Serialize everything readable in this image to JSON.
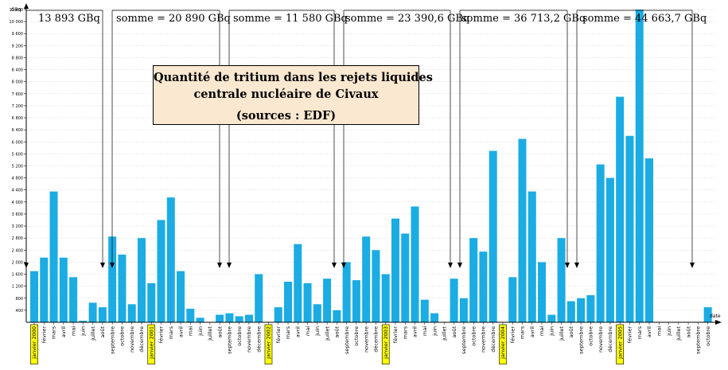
{
  "chart_data": {
    "type": "bar",
    "title": "Quantité de tritium dans les rejets liquides centrale nucléaire de Civaux",
    "title_lines": [
      "Quantité de tritium dans les rejets liquides",
      "centrale nucléaire de Civaux",
      "(sources : EDF)"
    ],
    "ylabel": "GBq",
    "xlabel": "date",
    "ylim": [
      0,
      10400
    ],
    "yticks": [
      400,
      800,
      1200,
      1600,
      2000,
      2400,
      2800,
      3200,
      3600,
      4000,
      4400,
      4800,
      5200,
      5600,
      6000,
      6400,
      6800,
      7200,
      7600,
      8000,
      8400,
      8800,
      9200,
      9600,
      10000,
      10400
    ],
    "ytick_labels": [
      "400",
      "800",
      "1 200",
      "1 600",
      "2 000",
      "2 400",
      "2 800",
      "3 200",
      "3 600",
      "4 000",
      "4 400",
      "4 800",
      "5 200",
      "5 600",
      "6 000",
      "6 400",
      "6 800",
      "7 200",
      "7 600",
      "8 000",
      "8 400",
      "8 800",
      "9 200",
      "9 600",
      "10 000",
      "10 400"
    ],
    "bar_color": "#1aace3",
    "highlight_color": "#ffff00",
    "categories": [
      "janvier 2000",
      "février",
      "mars",
      "avril",
      "mai",
      "juin",
      "juillet",
      "août",
      "septembre",
      "octobre",
      "novembre",
      "décembre",
      "janvier 2001",
      "février",
      "mars",
      "avril",
      "mai",
      "juin",
      "juillet",
      "août",
      "septembre",
      "octobre",
      "novembre",
      "décembre",
      "janvier 2002",
      "février",
      "mars",
      "avril",
      "mai",
      "juin",
      "juillet",
      "août",
      "septembre",
      "octobre",
      "novembre",
      "décembre",
      "janvier 2003",
      "février",
      "mars",
      "avril",
      "mai",
      "juin",
      "juillet",
      "août",
      "septembre",
      "octobre",
      "novembre",
      "décembre",
      "janvier 2004",
      "février",
      "mars",
      "avril",
      "mai",
      "juin",
      "juillet",
      "août",
      "septembre",
      "octobre",
      "novembre",
      "décembre",
      "janvier 2005",
      "février",
      "mars",
      "avril",
      "mai",
      "juin",
      "juillet",
      "août",
      "septembre",
      "octobre"
    ],
    "highlighted_categories": [
      "janvier 2000",
      "janvier 2001",
      "janvier 2002",
      "janvier 2003",
      "janvier 2004",
      "janvier 2005"
    ],
    "values": [
      1700,
      2150,
      4350,
      2150,
      1500,
      50,
      650,
      500,
      2850,
      2250,
      600,
      2800,
      1300,
      3400,
      4150,
      1700,
      450,
      150,
      0,
      250,
      300,
      200,
      250,
      1600,
      0,
      500,
      1350,
      2600,
      1300,
      600,
      1450,
      400,
      2000,
      1400,
      2850,
      2400,
      1600,
      3450,
      2950,
      3850,
      750,
      300,
      0,
      1450,
      800,
      2800,
      2350,
      5700,
      0,
      1500,
      6100,
      4350,
      2000,
      250,
      2800,
      700,
      800,
      900,
      5250,
      4800,
      7500,
      6200,
      10400,
      5450,
      0,
      0,
      0,
      0,
      0,
      500
    ],
    "annotations": [
      "13 893 GBq",
      "somme = 20 890 GBq",
      "somme = 11 580 GBq",
      "somme = 23 390,6 GBq",
      "somme = 36 713,2 GBq",
      "somme = 44 663,7 GBq"
    ]
  }
}
